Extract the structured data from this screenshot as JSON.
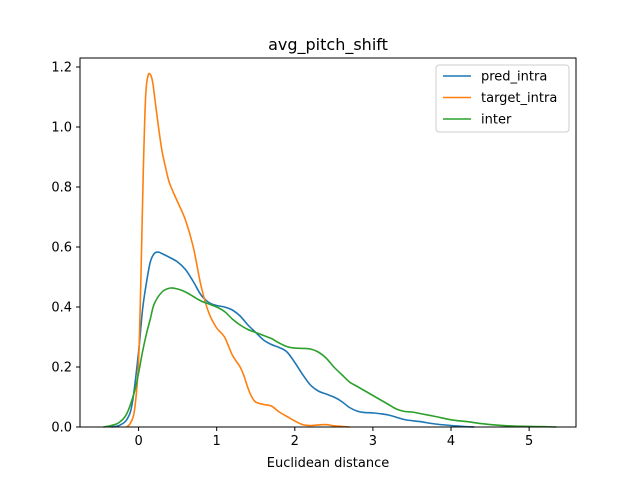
{
  "chart_data": {
    "type": "line",
    "title": "avg_pitch_shift",
    "xlabel": "Euclidean distance",
    "ylabel": "",
    "xlim": [
      -0.75,
      5.6
    ],
    "ylim": [
      0,
      1.23
    ],
    "x_ticks": [
      0,
      1,
      2,
      3,
      4,
      5
    ],
    "x_tick_labels": [
      "0",
      "1",
      "2",
      "3",
      "4",
      "5"
    ],
    "y_ticks": [
      0,
      0.2,
      0.4,
      0.6,
      0.8,
      1.0,
      1.2
    ],
    "y_tick_labels": [
      "0.0",
      "0.2",
      "0.4",
      "0.6",
      "0.8",
      "1.0",
      "1.2"
    ],
    "grid": false,
    "legend_position": "top-right",
    "series": [
      {
        "name": "pred_intra",
        "color": "#1f77b4",
        "x": [
          -0.35,
          -0.25,
          -0.15,
          -0.08,
          0.0,
          0.05,
          0.1,
          0.15,
          0.2,
          0.25,
          0.3,
          0.4,
          0.5,
          0.6,
          0.7,
          0.8,
          0.9,
          1.0,
          1.1,
          1.2,
          1.3,
          1.4,
          1.5,
          1.6,
          1.7,
          1.8,
          1.9,
          2.0,
          2.1,
          2.2,
          2.3,
          2.4,
          2.5,
          2.6,
          2.7,
          2.8,
          2.9,
          3.0,
          3.2,
          3.4,
          3.6,
          3.8,
          4.0,
          4.1,
          4.2,
          4.3
        ],
        "values": [
          0.0,
          0.005,
          0.025,
          0.08,
          0.25,
          0.39,
          0.48,
          0.55,
          0.578,
          0.583,
          0.578,
          0.565,
          0.55,
          0.525,
          0.485,
          0.44,
          0.415,
          0.405,
          0.4,
          0.39,
          0.37,
          0.34,
          0.315,
          0.29,
          0.275,
          0.265,
          0.25,
          0.215,
          0.175,
          0.14,
          0.12,
          0.11,
          0.1,
          0.085,
          0.065,
          0.053,
          0.048,
          0.047,
          0.04,
          0.025,
          0.018,
          0.01,
          0.005,
          0.003,
          0.001,
          0.0
        ]
      },
      {
        "name": "target_intra",
        "color": "#ff7f0e",
        "x": [
          -0.15,
          -0.1,
          -0.05,
          0.0,
          0.03,
          0.06,
          0.09,
          0.12,
          0.15,
          0.18,
          0.22,
          0.26,
          0.3,
          0.35,
          0.4,
          0.5,
          0.6,
          0.7,
          0.8,
          0.9,
          1.0,
          1.1,
          1.2,
          1.3,
          1.35,
          1.4,
          1.45,
          1.5,
          1.6,
          1.7,
          1.8,
          1.9,
          2.0,
          2.1,
          2.2,
          2.3,
          2.4,
          2.5,
          2.6,
          2.7
        ],
        "values": [
          0.0,
          0.015,
          0.06,
          0.22,
          0.5,
          0.85,
          1.1,
          1.17,
          1.175,
          1.15,
          1.07,
          0.99,
          0.92,
          0.86,
          0.81,
          0.75,
          0.69,
          0.6,
          0.47,
          0.38,
          0.33,
          0.3,
          0.24,
          0.2,
          0.17,
          0.13,
          0.1,
          0.083,
          0.075,
          0.07,
          0.05,
          0.035,
          0.02,
          0.008,
          0.005,
          0.007,
          0.008,
          0.004,
          0.002,
          0.0
        ]
      },
      {
        "name": "inter",
        "color": "#2ca02c",
        "x": [
          -0.45,
          -0.35,
          -0.25,
          -0.15,
          -0.05,
          0.0,
          0.05,
          0.1,
          0.15,
          0.2,
          0.3,
          0.4,
          0.5,
          0.6,
          0.7,
          0.8,
          0.9,
          1.0,
          1.1,
          1.2,
          1.3,
          1.4,
          1.5,
          1.6,
          1.7,
          1.8,
          1.9,
          2.0,
          2.1,
          2.2,
          2.3,
          2.4,
          2.5,
          2.6,
          2.7,
          2.8,
          2.9,
          3.0,
          3.1,
          3.2,
          3.3,
          3.4,
          3.5,
          3.6,
          3.8,
          4.0,
          4.2,
          4.4,
          4.6,
          4.8,
          5.0,
          5.2,
          5.35
        ],
        "values": [
          0.0,
          0.005,
          0.015,
          0.045,
          0.12,
          0.18,
          0.25,
          0.31,
          0.36,
          0.41,
          0.45,
          0.463,
          0.46,
          0.45,
          0.435,
          0.42,
          0.41,
          0.4,
          0.385,
          0.36,
          0.34,
          0.325,
          0.315,
          0.305,
          0.295,
          0.28,
          0.268,
          0.263,
          0.262,
          0.26,
          0.25,
          0.23,
          0.2,
          0.175,
          0.15,
          0.135,
          0.12,
          0.105,
          0.09,
          0.075,
          0.06,
          0.052,
          0.05,
          0.045,
          0.035,
          0.024,
          0.018,
          0.011,
          0.006,
          0.003,
          0.002,
          0.001,
          0.0
        ]
      }
    ]
  }
}
